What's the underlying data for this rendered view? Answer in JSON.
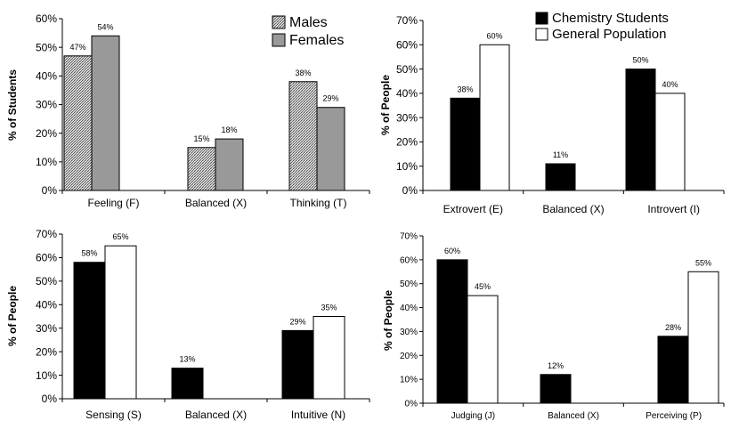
{
  "chart_data": [
    {
      "type": "bar",
      "ylabel": "% of Students",
      "ylim": [
        0,
        60
      ],
      "yticks": [
        "0%",
        "10%",
        "20%",
        "30%",
        "40%",
        "50%",
        "60%"
      ],
      "categories": [
        "Feeling (F)",
        "Balanced (X)",
        "Thinking (T)"
      ],
      "legend_position": "top-right",
      "series": [
        {
          "name": "Males",
          "fill": "hatched",
          "values": [
            47,
            15,
            38
          ],
          "labels": [
            "47%",
            "15%",
            "38%"
          ]
        },
        {
          "name": "Females",
          "fill": "#999999",
          "values": [
            54,
            18,
            29
          ],
          "labels": [
            "54%",
            "18%",
            "29%"
          ]
        }
      ]
    },
    {
      "type": "bar",
      "ylabel": "% of People",
      "ylim": [
        0,
        70
      ],
      "yticks": [
        "0%",
        "10%",
        "20%",
        "30%",
        "40%",
        "50%",
        "60%",
        "70%"
      ],
      "categories": [
        "Extrovert (E)",
        "Balanced (X)",
        "Introvert (I)"
      ],
      "legend_position": "top-right",
      "series": [
        {
          "name": "Chemistry Students",
          "fill": "#000000",
          "values": [
            38,
            11,
            50
          ],
          "labels": [
            "38%",
            "11%",
            "50%"
          ]
        },
        {
          "name": "General Population",
          "fill": "#ffffff",
          "values": [
            60,
            null,
            40
          ],
          "labels": [
            "60%",
            "",
            "40%"
          ]
        }
      ]
    },
    {
      "type": "bar",
      "ylabel": "% of People",
      "ylim": [
        0,
        70
      ],
      "yticks": [
        "0%",
        "10%",
        "20%",
        "30%",
        "40%",
        "50%",
        "60%",
        "70%"
      ],
      "categories": [
        "Sensing (S)",
        "Balanced (X)",
        "Intuitive (N)"
      ],
      "series": [
        {
          "fill": "#000000",
          "values": [
            58,
            13,
            29
          ],
          "labels": [
            "58%",
            "13%",
            "29%"
          ]
        },
        {
          "fill": "#ffffff",
          "values": [
            65,
            null,
            35
          ],
          "labels": [
            "65%",
            "",
            "35%"
          ]
        }
      ]
    },
    {
      "type": "bar",
      "ylabel": "% of People",
      "ylim": [
        0,
        70
      ],
      "yticks": [
        "0%",
        "10%",
        "20%",
        "30%",
        "40%",
        "50%",
        "60%",
        "70%"
      ],
      "categories": [
        "Judging (J)",
        "Balanced (X)",
        "Perceiving (P)"
      ],
      "series": [
        {
          "fill": "#000000",
          "values": [
            60,
            12,
            28
          ],
          "labels": [
            "60%",
            "12%",
            "28%"
          ]
        },
        {
          "fill": "#ffffff",
          "values": [
            45,
            null,
            55
          ],
          "labels": [
            "45%",
            "",
            "55%"
          ]
        }
      ]
    }
  ]
}
